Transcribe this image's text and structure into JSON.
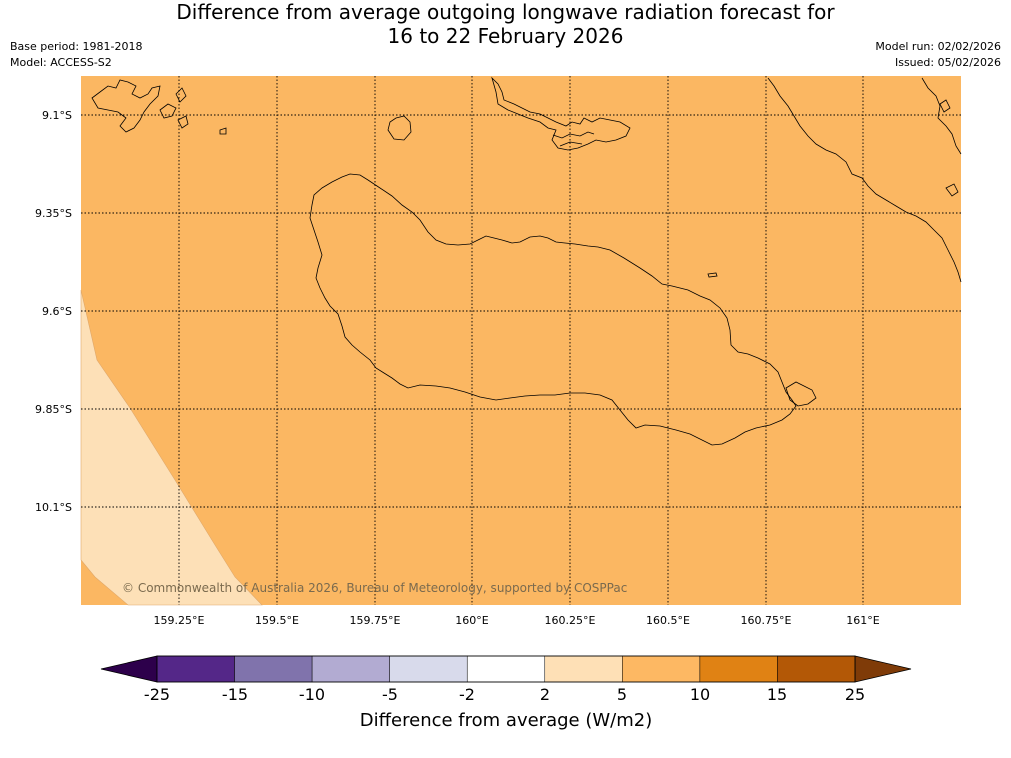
{
  "title": {
    "line1": "Difference from average outgoing longwave radiation forecast for",
    "line2": "16 to 22 February 2026"
  },
  "meta": {
    "base_period": "Base period: 1981-2018",
    "model": "Model: ACCESS-S2",
    "model_run": "Model run: 02/02/2026",
    "issued": "Issued: 05/02/2026"
  },
  "map": {
    "lat_labels": [
      "9.1°S",
      "9.35°S",
      "9.6°S",
      "9.85°S",
      "10.1°S"
    ],
    "lon_labels": [
      "159.25°E",
      "159.5°E",
      "159.75°E",
      "160°E",
      "160.25°E",
      "160.5°E",
      "160.75°E",
      "161°E"
    ],
    "copyright": "© Commonwealth of Australia 2026, Bureau of Meteorology, supported by COSPPac",
    "main_fill": "#fbb762",
    "low_fill": "#fde0b7"
  },
  "colorbar": {
    "title": "Difference from average (W/m2)",
    "labels": [
      "-25",
      "-15",
      "-10",
      "-5",
      "-2",
      "2",
      "5",
      "10",
      "15",
      "25"
    ],
    "colors": [
      "#542788",
      "#8073ac",
      "#b2abd2",
      "#d8daeb",
      "#ffffff",
      "#fee0b6",
      "#fdb863",
      "#e08214",
      "#b35806"
    ],
    "under_color": "#2d004b",
    "over_color": "#7f3b08"
  }
}
